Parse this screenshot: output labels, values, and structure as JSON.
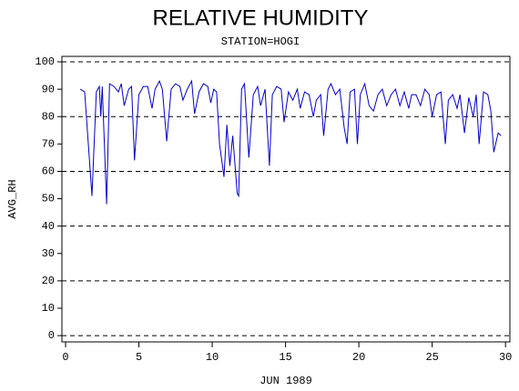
{
  "chart_data": {
    "type": "line",
    "title": "RELATIVE HUMIDITY",
    "subtitle": "STATION=HOGI",
    "y_label": "AVG_RH",
    "x_label": "JUN 1989",
    "xlim": [
      -0.25,
      30.3
    ],
    "ylim": [
      -2.3,
      102
    ],
    "xticks": [
      0,
      5,
      10,
      15,
      20,
      25,
      30
    ],
    "yticks": [
      0,
      10,
      20,
      30,
      40,
      50,
      60,
      70,
      80,
      90,
      100
    ],
    "grid_lines": [
      0,
      20,
      40,
      60,
      80,
      100
    ],
    "series": [
      {
        "name": "AVG_RH",
        "color": "#0000cc",
        "x": [
          1.0,
          1.3,
          1.8,
          2.1,
          2.3,
          2.4,
          2.5,
          2.8,
          3.0,
          3.3,
          3.6,
          3.8,
          4.0,
          4.3,
          4.5,
          4.7,
          5.0,
          5.3,
          5.6,
          5.9,
          6.1,
          6.4,
          6.6,
          6.9,
          7.2,
          7.5,
          7.8,
          8.0,
          8.3,
          8.6,
          8.8,
          9.1,
          9.4,
          9.7,
          9.9,
          10.1,
          10.3,
          10.5,
          10.8,
          11.0,
          11.2,
          11.4,
          11.7,
          11.8,
          12.0,
          12.2,
          12.5,
          12.8,
          13.1,
          13.3,
          13.6,
          13.9,
          14.1,
          14.4,
          14.7,
          14.9,
          15.2,
          15.5,
          15.8,
          16.0,
          16.3,
          16.6,
          16.9,
          17.1,
          17.4,
          17.6,
          17.9,
          18.1,
          18.4,
          18.7,
          19.0,
          19.2,
          19.4,
          19.7,
          19.9,
          20.1,
          20.4,
          20.7,
          21.0,
          21.3,
          21.6,
          21.9,
          22.2,
          22.5,
          22.8,
          23.1,
          23.4,
          23.6,
          23.9,
          24.2,
          24.5,
          24.8,
          25.0,
          25.3,
          25.6,
          25.9,
          26.1,
          26.4,
          26.7,
          26.9,
          27.2,
          27.5,
          27.8,
          28.0,
          28.2,
          28.5,
          28.8,
          29.0,
          29.2,
          29.5,
          29.7
        ],
        "values": [
          90,
          89,
          51,
          89,
          91,
          80,
          91,
          48,
          92,
          91,
          89,
          92,
          84,
          90,
          91,
          64,
          88,
          91,
          91,
          83,
          90,
          93,
          90,
          71,
          90,
          92,
          91,
          86,
          90,
          93,
          81,
          89,
          92,
          91,
          85,
          90,
          89,
          70,
          58,
          77,
          62,
          73,
          52,
          51,
          90,
          92,
          65,
          88,
          91,
          84,
          90,
          62,
          88,
          91,
          90,
          78,
          89,
          86,
          90,
          83,
          89,
          88,
          80,
          86,
          88,
          73,
          90,
          92,
          88,
          90,
          76,
          70,
          89,
          90,
          70,
          88,
          92,
          84,
          82,
          88,
          90,
          84,
          88,
          90,
          84,
          89,
          83,
          88,
          88,
          84,
          90,
          88,
          80,
          88,
          89,
          70,
          86,
          88,
          83,
          88,
          74,
          87,
          80,
          88,
          70,
          89,
          88,
          82,
          67,
          74,
          73
        ]
      }
    ]
  }
}
